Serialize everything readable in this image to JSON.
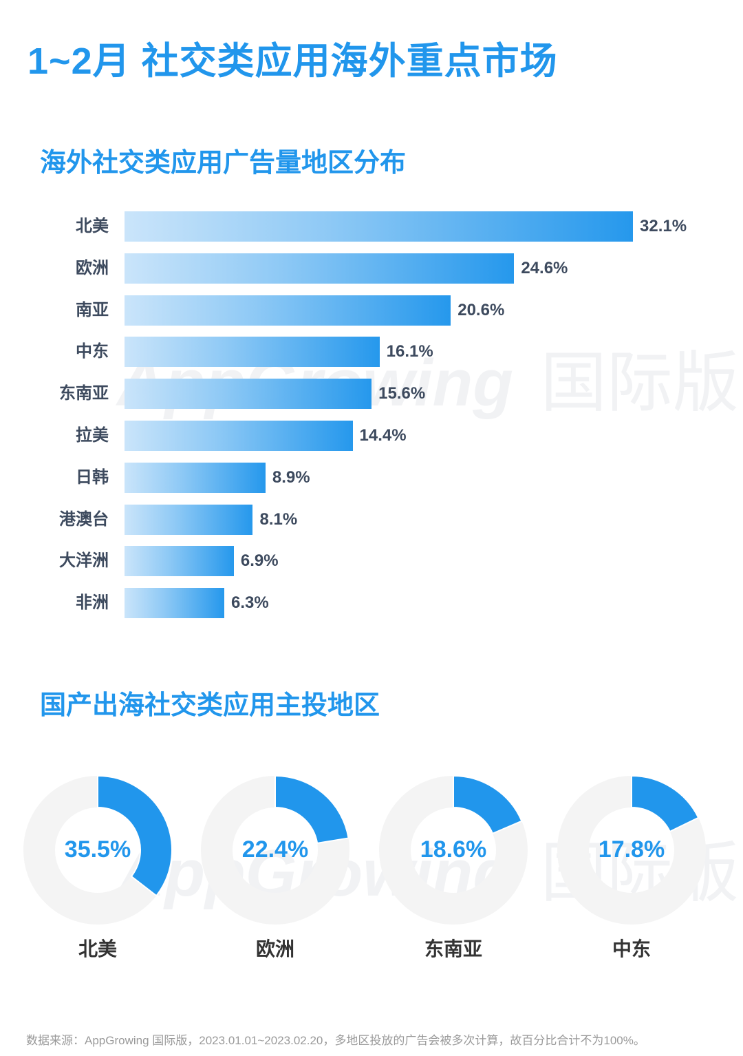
{
  "page": {
    "title": "1~2月 社交类应用海外重点市场",
    "section1_title": "海外社交类应用广告量地区分布",
    "section2_title": "国产出海社交类应用主投地区",
    "watermark_en": "AppGrowing",
    "watermark_cn": "国际版",
    "footer": "数据来源：AppGrowing 国际版，2023.01.01~2023.02.20，多地区投放的广告会被多次计算，故百分比合计不为100%。"
  },
  "colors": {
    "accent": "#2196ec",
    "bar_gradient_start": "#c9e4fa",
    "bar_gradient_end": "#2196ec",
    "label_text": "#3d4a5e",
    "donut_track": "#f4f4f4"
  },
  "bar_rows": [
    {
      "label": "北美",
      "value_label": "32.1%",
      "value": 32.1
    },
    {
      "label": "欧洲",
      "value_label": "24.6%",
      "value": 24.6
    },
    {
      "label": "南亚",
      "value_label": "20.6%",
      "value": 20.6
    },
    {
      "label": "中东",
      "value_label": "16.1%",
      "value": 16.1
    },
    {
      "label": "东南亚",
      "value_label": "15.6%",
      "value": 15.6
    },
    {
      "label": "拉美",
      "value_label": "14.4%",
      "value": 14.4
    },
    {
      "label": "日韩",
      "value_label": "8.9%",
      "value": 8.9
    },
    {
      "label": "港澳台",
      "value_label": "8.1%",
      "value": 8.1
    },
    {
      "label": "大洋洲",
      "value_label": "6.9%",
      "value": 6.9
    },
    {
      "label": "非洲",
      "value_label": "6.3%",
      "value": 6.3
    }
  ],
  "donuts": [
    {
      "label": "北美",
      "value_label": "35.5%",
      "value": 35.5
    },
    {
      "label": "欧洲",
      "value_label": "22.4%",
      "value": 22.4
    },
    {
      "label": "东南亚",
      "value_label": "18.6%",
      "value": 18.6
    },
    {
      "label": "中东",
      "value_label": "17.8%",
      "value": 17.8
    }
  ],
  "chart_data": [
    {
      "type": "bar",
      "orientation": "horizontal",
      "title": "海外社交类应用广告量地区分布",
      "categories": [
        "北美",
        "欧洲",
        "南亚",
        "中东",
        "东南亚",
        "拉美",
        "日韩",
        "港澳台",
        "大洋洲",
        "非洲"
      ],
      "values": [
        32.1,
        24.6,
        20.6,
        16.1,
        15.6,
        14.4,
        8.9,
        8.1,
        6.9,
        6.3
      ],
      "unit": "%",
      "xlabel": "",
      "ylabel": "",
      "grid": false,
      "legend": "none",
      "data_labels": true
    },
    {
      "type": "pie",
      "variant": "donut",
      "title": "国产出海社交类应用主投地区",
      "categories": [
        "北美",
        "欧洲",
        "东南亚",
        "中东"
      ],
      "values": [
        35.5,
        22.4,
        18.6,
        17.8
      ],
      "unit": "%",
      "note": "Each donut shows a single share out of 100%"
    }
  ]
}
